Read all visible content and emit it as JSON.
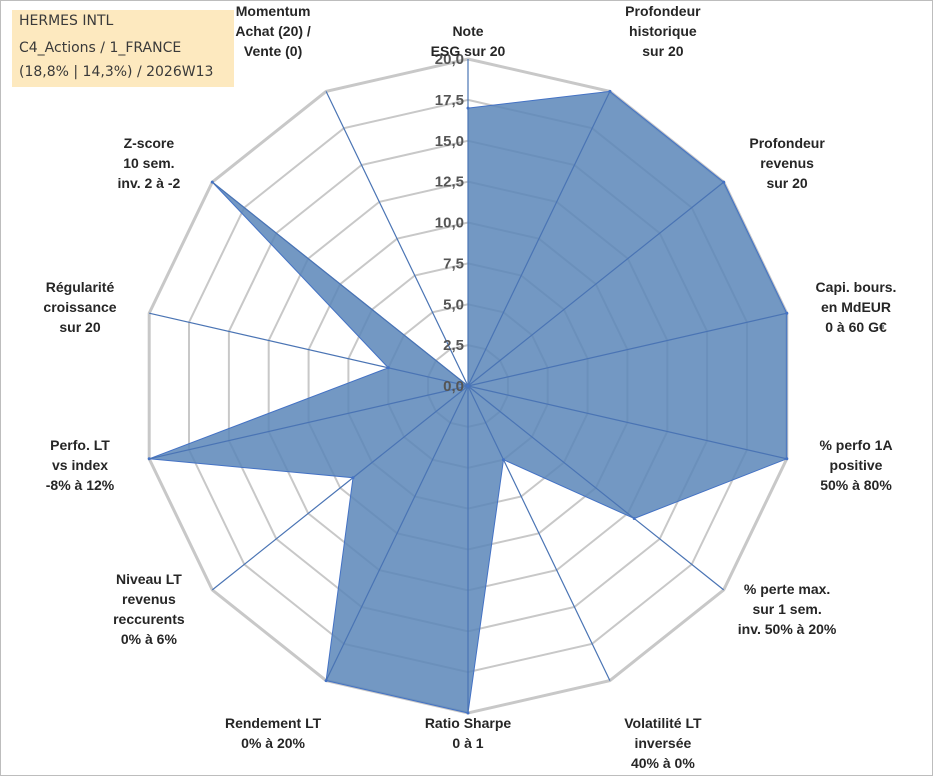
{
  "info_box": {
    "line1": "HERMES INTL",
    "line2": "C4_Actions / 1_FRANCE",
    "line3": "(18,8% | 14,3%) / 2026W13"
  },
  "chart_data": {
    "type": "radar",
    "title": "HERMES INTL",
    "rmin": 0,
    "rmax": 20,
    "ticks": [
      "0,0",
      "2,5",
      "5,0",
      "7,5",
      "10,0",
      "12,5",
      "15,0",
      "17,5",
      "20,0"
    ],
    "axes": [
      {
        "lines": [
          "Note",
          "ESG sur 20"
        ]
      },
      {
        "lines": [
          "Profondeur",
          "historique",
          "sur 20"
        ]
      },
      {
        "lines": [
          "Profondeur",
          "revenus",
          "sur 20"
        ]
      },
      {
        "lines": [
          "Capi. bours.",
          "en MdEUR",
          "0 à 60 G€"
        ]
      },
      {
        "lines": [
          "% perfo 1A",
          "positive",
          "50% à 80%"
        ]
      },
      {
        "lines": [
          "% perte max.",
          "sur 1 sem.",
          "inv. 50% à 20%"
        ]
      },
      {
        "lines": [
          "Volatilité LT",
          "inversée",
          "40% à 0%"
        ]
      },
      {
        "lines": [
          "Ratio Sharpe",
          "0 à 1"
        ]
      },
      {
        "lines": [
          "Rendement LT",
          "0% à 20%"
        ]
      },
      {
        "lines": [
          "Niveau LT",
          "revenus",
          "reccurents",
          "0% à 6%"
        ]
      },
      {
        "lines": [
          "Perfo. LT",
          "vs index",
          "-8% à 12%"
        ]
      },
      {
        "lines": [
          "Régularité",
          "croissance",
          "sur 20"
        ]
      },
      {
        "lines": [
          "Z-score",
          "10 sem.",
          "inv. 2 à -2"
        ]
      },
      {
        "lines": [
          "Momentum",
          "Achat (20) /",
          "Vente (0)"
        ]
      }
    ],
    "series": [
      {
        "name": "HERMES INTL",
        "values": [
          17,
          20,
          20,
          20,
          20,
          13,
          5,
          20,
          20,
          9,
          20,
          5,
          20,
          0
        ]
      }
    ],
    "colors": {
      "fill": "#5b86b8",
      "fill_opacity": "0.85",
      "stroke": "#4472c4",
      "grid": "#c8c8c8",
      "axis_line": "#4a74b4"
    }
  }
}
